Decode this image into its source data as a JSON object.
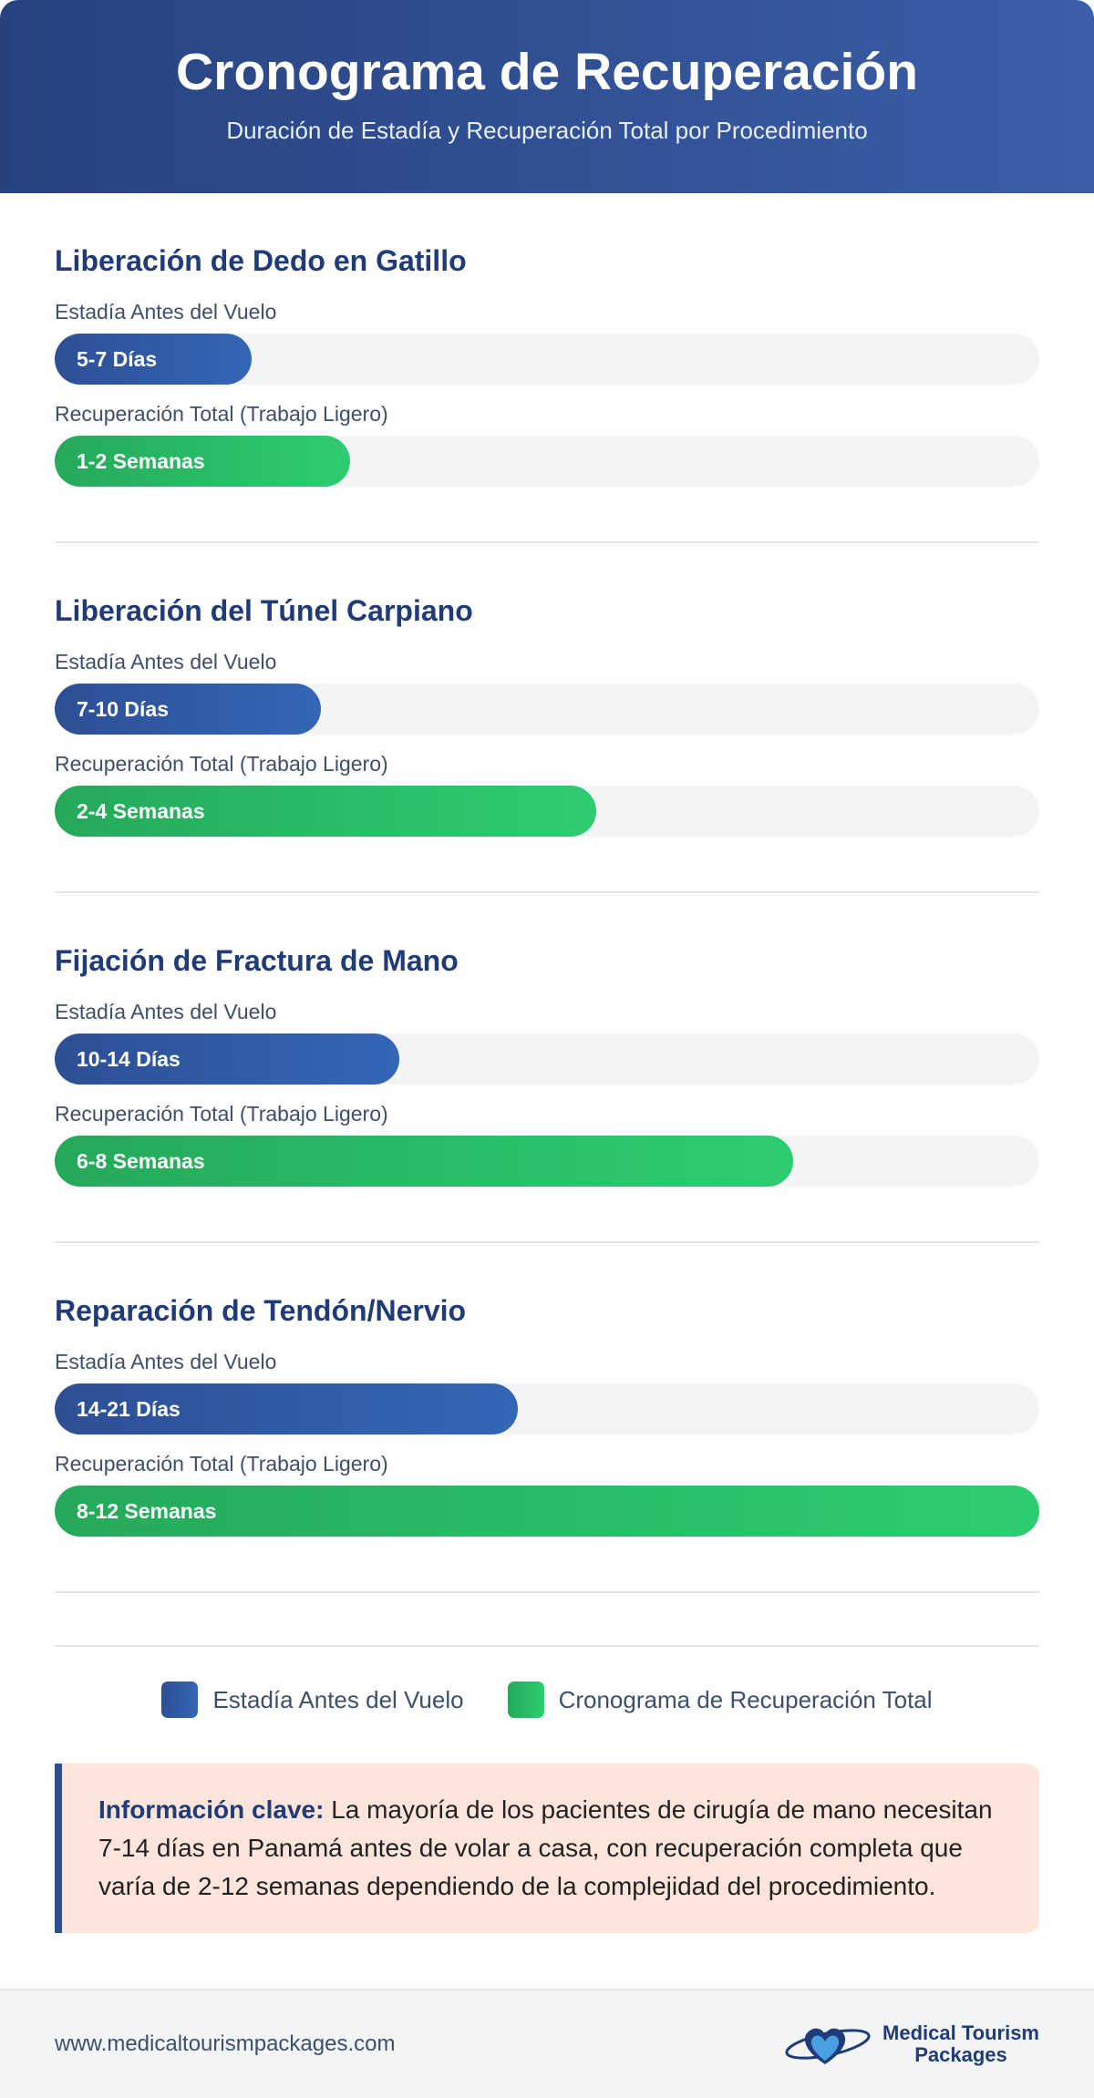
{
  "header": {
    "title": "Cronograma de Recuperación",
    "subtitle": "Duración de Estadía y Recuperación Total por Procedimiento"
  },
  "procedures": [
    {
      "name": "Liberación de Dedo en Gatillo",
      "bars": [
        {
          "label": "Estadía Antes del Vuelo",
          "text": "5-7 Días",
          "percent": 20
        },
        {
          "label": "Recuperación Total (Trabajo Ligero)",
          "text": "1-2 Semanas",
          "percent": 30
        }
      ]
    },
    {
      "name": "Liberación del Túnel Carpiano",
      "bars": [
        {
          "label": "Estadía Antes del Vuelo",
          "text": "7-10 Días",
          "percent": 27
        },
        {
          "label": "Recuperación Total (Trabajo Ligero)",
          "text": "2-4 Semanas",
          "percent": 55
        }
      ]
    },
    {
      "name": "Fijación de Fractura de Mano",
      "bars": [
        {
          "label": "Estadía Antes del Vuelo",
          "text": "10-14 Días",
          "percent": 35
        },
        {
          "label": "Recuperación Total (Trabajo Ligero)",
          "text": "6-8 Semanas",
          "percent": 75
        }
      ]
    },
    {
      "name": "Reparación de Tendón/Nervio",
      "bars": [
        {
          "label": "Estadía Antes del Vuelo",
          "text": "14-21 Días",
          "percent": 47
        },
        {
          "label": "Recuperación Total (Trabajo Ligero)",
          "text": "8-12 Semanas",
          "percent": 100
        }
      ]
    }
  ],
  "legend": [
    "Estadía Antes del Vuelo",
    "Cronograma de Recuperación Total"
  ],
  "note": {
    "bold": "Información clave:",
    "text": "La mayoría de los pacientes de cirugía de mano necesitan 7-14 días en Panamá antes de volar a casa, con recuperación completa que varía de 2-12 semanas dependiendo de la complejidad del procedimiento."
  },
  "footer": {
    "url": "www.medicaltourismpackages.com",
    "logo": [
      "Medical Tourism",
      "Packages"
    ]
  }
}
